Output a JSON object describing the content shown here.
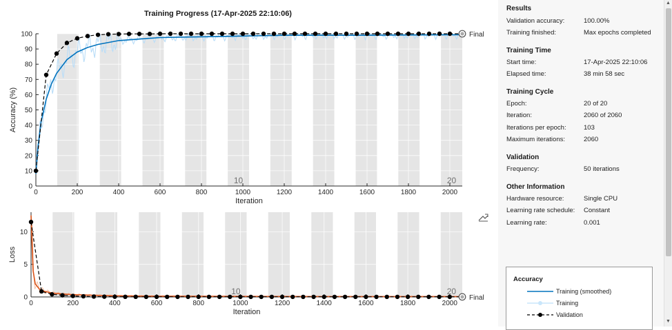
{
  "title": "Training Progress (17-Apr-2025 22:10:06)",
  "chart_data": [
    {
      "name": "accuracy-plot",
      "type": "line",
      "xlabel": "Iteration",
      "ylabel": "Accuracy (%)",
      "xlim": [
        0,
        2060
      ],
      "ylim": [
        0,
        100
      ],
      "xticks": [
        0,
        200,
        400,
        600,
        800,
        1000,
        1200,
        1400,
        1600,
        1800,
        2000
      ],
      "yticks": [
        0,
        10,
        20,
        30,
        40,
        50,
        60,
        70,
        80,
        90,
        100
      ],
      "epoch_markers": [
        "10",
        "20"
      ],
      "final_label": "Final",
      "series": [
        {
          "name": "Training (smoothed)",
          "color": "#0072bd",
          "x": [
            0,
            10,
            25,
            50,
            75,
            100,
            150,
            200,
            250,
            300,
            400,
            500,
            600,
            800,
            1000,
            1200,
            1400,
            1600,
            1800,
            2000,
            2060
          ],
          "y": [
            8,
            25,
            42,
            57,
            67,
            74,
            83,
            88,
            91,
            93,
            95.5,
            96.5,
            97.5,
            98,
            98.5,
            99,
            99,
            99,
            99.2,
            99.3,
            99.3
          ]
        },
        {
          "name": "Validation",
          "color": "#000000",
          "x": [
            0,
            50,
            100,
            150,
            200,
            250,
            300,
            350,
            400,
            450,
            500,
            550,
            600,
            650,
            700,
            750,
            800,
            850,
            900,
            950,
            1000,
            1050,
            1100,
            1150,
            1200,
            1250,
            1300,
            1350,
            1400,
            1450,
            1500,
            1550,
            1600,
            1650,
            1700,
            1750,
            1800,
            1850,
            1900,
            1950,
            2000,
            2060
          ],
          "y": [
            10,
            73,
            87,
            94,
            97,
            98.5,
            99.3,
            99.7,
            99.8,
            99.9,
            99.9,
            99.9,
            100,
            100,
            100,
            100,
            100,
            100,
            100,
            100,
            100,
            100,
            100,
            100,
            100,
            100,
            100,
            100,
            100,
            100,
            100,
            100,
            100,
            100,
            100,
            100,
            100,
            100,
            100,
            100,
            100,
            100
          ]
        }
      ]
    },
    {
      "name": "loss-plot",
      "type": "line",
      "xlabel": "Iteration",
      "ylabel": "Loss",
      "xlim": [
        0,
        2060
      ],
      "ylim": [
        0,
        13
      ],
      "xticks": [
        0,
        200,
        400,
        600,
        800,
        1000,
        1200,
        1400,
        1600,
        1800,
        2000
      ],
      "yticks": [
        0,
        5,
        10
      ],
      "epoch_markers": [
        "10",
        "20"
      ],
      "final_label": "Final",
      "series": [
        {
          "name": "Training (smoothed)",
          "color": "#d95319",
          "x": [
            0,
            5,
            10,
            20,
            40,
            60,
            100,
            150,
            200,
            300,
            400,
            600,
            1000,
            1400,
            2060
          ],
          "y": [
            12.5,
            8,
            4,
            2,
            1.2,
            0.9,
            0.6,
            0.45,
            0.35,
            0.25,
            0.18,
            0.12,
            0.08,
            0.06,
            0.05
          ]
        },
        {
          "name": "Validation",
          "color": "#000000",
          "x": [
            0,
            50,
            100,
            150,
            200,
            250,
            300,
            350,
            400,
            450,
            500,
            550,
            600,
            650,
            700,
            750,
            800,
            850,
            900,
            950,
            1000,
            1050,
            1100,
            1150,
            1200,
            1250,
            1300,
            1350,
            1400,
            1450,
            1500,
            1550,
            1600,
            1650,
            1700,
            1750,
            1800,
            1850,
            1900,
            1950,
            2000,
            2060
          ],
          "y": [
            11.5,
            0.85,
            0.4,
            0.25,
            0.15,
            0.1,
            0.06,
            0.04,
            0.03,
            0.02,
            0.02,
            0.01,
            0.01,
            0.01,
            0.01,
            0.01,
            0.01,
            0.01,
            0.01,
            0.01,
            0.01,
            0.01,
            0.01,
            0.01,
            0.01,
            0.01,
            0.01,
            0.01,
            0.01,
            0.01,
            0.01,
            0.01,
            0.01,
            0.01,
            0.01,
            0.01,
            0.01,
            0.01,
            0.01,
            0.01,
            0.01,
            0.01
          ]
        }
      ]
    }
  ],
  "info": {
    "results_title": "Results",
    "validation_accuracy_label": "Validation accuracy:",
    "validation_accuracy_value": "100.00%",
    "training_finished_label": "Training finished:",
    "training_finished_value": "Max epochs completed",
    "training_time_title": "Training Time",
    "start_time_label": "Start time:",
    "start_time_value": "17-Apr-2025 22:10:06",
    "elapsed_time_label": "Elapsed time:",
    "elapsed_time_value": "38 min 58 sec",
    "training_cycle_title": "Training Cycle",
    "epoch_label": "Epoch:",
    "epoch_value": "20 of 20",
    "iteration_label": "Iteration:",
    "iteration_value": "2060 of 2060",
    "iter_per_epoch_label": "Iterations per epoch:",
    "iter_per_epoch_value": "103",
    "max_iter_label": "Maximum iterations:",
    "max_iter_value": "2060",
    "validation_title": "Validation",
    "frequency_label": "Frequency:",
    "frequency_value": "50 iterations",
    "other_title": "Other Information",
    "hardware_label": "Hardware resource:",
    "hardware_value": "Single CPU",
    "lr_schedule_label": "Learning rate schedule:",
    "lr_schedule_value": "Constant",
    "lr_label": "Learning rate:",
    "lr_value": "0.001"
  },
  "legend": {
    "title": "Accuracy",
    "items": [
      "Training (smoothed)",
      "Training",
      "Validation"
    ]
  }
}
